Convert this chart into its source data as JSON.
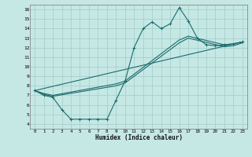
{
  "xlabel": "Humidex (Indice chaleur)",
  "bg_color": "#c5e8e5",
  "line_color": "#1a6b6b",
  "grid_color": "#a8d0cc",
  "xlim": [
    -0.5,
    23.5
  ],
  "ylim": [
    3.5,
    16.5
  ],
  "xticks": [
    0,
    1,
    2,
    3,
    4,
    5,
    6,
    7,
    8,
    9,
    10,
    11,
    12,
    13,
    14,
    15,
    16,
    17,
    18,
    19,
    20,
    21,
    22,
    23
  ],
  "yticks": [
    4,
    5,
    6,
    7,
    8,
    9,
    10,
    11,
    12,
    13,
    14,
    15,
    16
  ],
  "line1_x": [
    0,
    1,
    2,
    3,
    4,
    5,
    6,
    7,
    8,
    9,
    10,
    11,
    12,
    13,
    14,
    15,
    16,
    17,
    18,
    19,
    20,
    21,
    22,
    23
  ],
  "line1_y": [
    7.5,
    7.0,
    6.8,
    5.5,
    4.5,
    4.5,
    4.5,
    4.5,
    4.5,
    6.5,
    8.5,
    12.0,
    14.0,
    14.7,
    14.0,
    14.5,
    16.2,
    14.8,
    13.0,
    12.3,
    12.2,
    12.3,
    12.4,
    12.6
  ],
  "line2_x": [
    0,
    1,
    2,
    9,
    10,
    16,
    17,
    21,
    22,
    23
  ],
  "line2_y": [
    7.5,
    7.2,
    7.0,
    8.2,
    8.5,
    12.8,
    13.2,
    12.3,
    12.4,
    12.6
  ],
  "line3_x": [
    0,
    1,
    2,
    9,
    10,
    16,
    17,
    21,
    22,
    23
  ],
  "line3_y": [
    7.5,
    7.1,
    6.9,
    8.0,
    8.3,
    12.5,
    13.0,
    12.1,
    12.2,
    12.5
  ],
  "line4_x": [
    0,
    23
  ],
  "line4_y": [
    7.5,
    12.6
  ]
}
